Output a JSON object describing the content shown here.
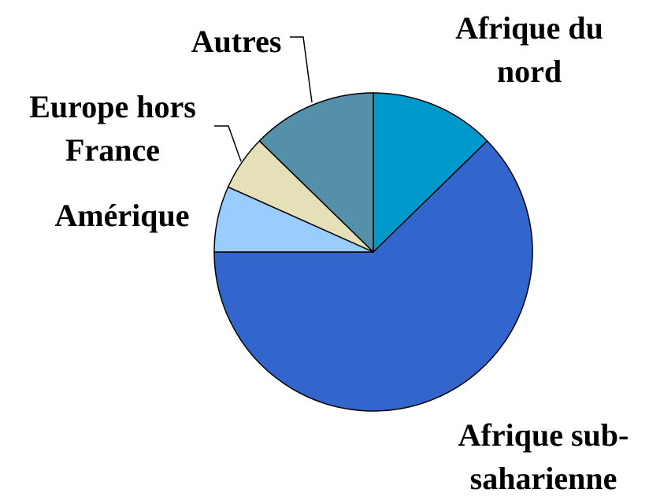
{
  "chart_data": {
    "type": "pie",
    "categories": [
      "Afrique du nord",
      "Afrique sub-saharienne",
      "Amérique",
      "Europe hors France",
      "Autres"
    ],
    "values": [
      12.7,
      62.3,
      6.7,
      5.6,
      12.7
    ],
    "colors": [
      "#0099cc",
      "#3366cc",
      "#99ccff",
      "#e6e0b8",
      "#5590aa"
    ]
  }
}
